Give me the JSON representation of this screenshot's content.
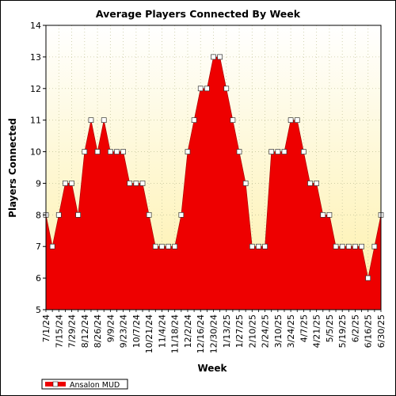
{
  "chart_data": {
    "type": "area",
    "title": "Average Players Connected By Week",
    "xlabel": "Week",
    "ylabel": "Players Connected",
    "ylim": [
      5,
      14
    ],
    "yticks": [
      5,
      6,
      7,
      8,
      9,
      10,
      11,
      12,
      13,
      14
    ],
    "grid": true,
    "legend_position": "bottom-left",
    "colors": {
      "plot_bg_top": "#ffffff",
      "plot_bg_bottom": "#fdf0a8",
      "area_fill": "#ee0000",
      "marker_fill": "#ffffff",
      "grid": "#c8c8a0"
    },
    "x": [
      "7/1/24",
      "7/8/24",
      "7/15/24",
      "7/22/24",
      "7/29/24",
      "8/5/24",
      "8/12/24",
      "8/19/24",
      "8/26/24",
      "9/2/24",
      "9/9/24",
      "9/16/24",
      "9/23/24",
      "9/30/24",
      "10/7/24",
      "10/14/24",
      "10/21/24",
      "10/28/24",
      "11/4/24",
      "11/11/24",
      "11/18/24",
      "11/25/24",
      "12/2/24",
      "12/9/24",
      "12/16/24",
      "12/23/24",
      "12/30/24",
      "1/6/25",
      "1/13/25",
      "1/20/25",
      "1/27/25",
      "2/3/25",
      "2/10/25",
      "2/17/25",
      "2/24/25",
      "3/3/25",
      "3/10/25",
      "3/17/25",
      "3/24/25",
      "3/31/25",
      "4/7/25",
      "4/14/25",
      "4/21/25",
      "4/28/25",
      "5/5/25",
      "5/12/25",
      "5/19/25",
      "5/26/25",
      "6/2/25",
      "6/9/25",
      "6/16/25",
      "6/23/25",
      "6/30/25"
    ],
    "xtick_labels": [
      "7/1/24",
      "7/15/24",
      "7/29/24",
      "8/12/24",
      "8/26/24",
      "9/9/24",
      "9/23/24",
      "10/7/24",
      "10/21/24",
      "11/4/24",
      "11/18/24",
      "12/2/24",
      "12/16/24",
      "12/30/24",
      "1/13/25",
      "1/27/25",
      "2/10/25",
      "2/24/25",
      "3/10/25",
      "3/24/25",
      "4/7/25",
      "4/21/25",
      "5/5/25",
      "5/19/25",
      "6/2/25",
      "6/16/25",
      "6/30/25"
    ],
    "series": [
      {
        "name": "Ansalon MUD",
        "values": [
          8,
          7,
          8,
          9,
          9,
          8,
          10,
          11,
          10,
          11,
          10,
          10,
          10,
          9,
          9,
          9,
          8,
          7,
          7,
          7,
          7,
          8,
          10,
          11,
          12,
          12,
          13,
          13,
          12,
          11,
          10,
          9,
          7,
          7,
          7,
          10,
          10,
          10,
          11,
          11,
          10,
          9,
          9,
          8,
          8,
          7,
          7,
          7,
          7,
          7,
          6,
          7,
          8
        ]
      }
    ]
  }
}
